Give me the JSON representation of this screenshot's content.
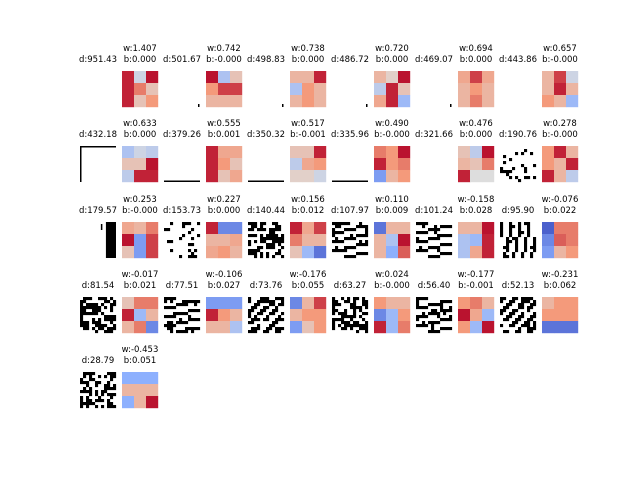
{
  "chart_data": {
    "type": "heatmap",
    "description_items_shown": 25,
    "colormap": "coolwarm",
    "pairs": [
      {
        "d": "d:951.43",
        "w": "w:1.407",
        "b": "b:0.000",
        "pattern": "blank",
        "kernel": [
          [
            0.9,
            -0.1,
            0.95
          ],
          [
            0.9,
            0.6,
            0.2
          ],
          [
            0.9,
            0.2,
            0.5
          ]
        ]
      },
      {
        "d": "d:501.67",
        "w": "w:0.742",
        "b": "b:-0.000",
        "pattern": "tick",
        "kernel": [
          [
            0.95,
            -0.3,
            0.2
          ],
          [
            0.5,
            0.8,
            0.8
          ],
          [
            0.3,
            0.3,
            0.3
          ]
        ]
      },
      {
        "d": "d:498.83",
        "w": "w:0.738",
        "b": "b:0.000",
        "pattern": "tick",
        "kernel": [
          [
            0.3,
            0.3,
            0.9
          ],
          [
            -0.3,
            0.5,
            0.3
          ],
          [
            0.3,
            0.5,
            0.3
          ]
        ]
      },
      {
        "d": "d:486.72",
        "w": "w:0.720",
        "b": "b:0.000",
        "pattern": "tick",
        "kernel": [
          [
            0.3,
            0.1,
            0.95
          ],
          [
            -0.2,
            0.9,
            0.2
          ],
          [
            0.4,
            0.9,
            -0.4
          ]
        ]
      },
      {
        "d": "d:469.07",
        "w": "w:0.694",
        "b": "b:0.000",
        "pattern": "tick",
        "kernel": [
          [
            0.4,
            0.8,
            0.4
          ],
          [
            0.3,
            0.5,
            0.3
          ],
          [
            0.3,
            0.6,
            0.3
          ]
        ]
      },
      {
        "d": "d:443.86",
        "w": "w:0.657",
        "b": "b:-0.000",
        "pattern": "blank",
        "kernel": [
          [
            0.3,
            0.8,
            -0.1
          ],
          [
            0.3,
            0.9,
            0.3
          ],
          [
            0.5,
            0.3,
            -0.4
          ]
        ]
      },
      {
        "d": "d:432.18",
        "w": "w:0.633",
        "b": "b:0.000",
        "pattern": "corner",
        "kernel": [
          [
            -0.3,
            -0.1,
            -0.2
          ],
          [
            0.2,
            0.2,
            0.95
          ],
          [
            -0.2,
            0.9,
            0.9
          ]
        ]
      },
      {
        "d": "d:379.26",
        "w": "w:0.555",
        "b": "b:0.001",
        "pattern": "bottomline",
        "kernel": [
          [
            0.9,
            0.4,
            0.4
          ],
          [
            0.9,
            0.5,
            0.2
          ],
          [
            0.9,
            0.2,
            0.4
          ]
        ]
      },
      {
        "d": "d:350.32",
        "w": "w:0.517",
        "b": "b:-0.001",
        "pattern": "bottomline",
        "kernel": [
          [
            0.2,
            0.2,
            0.9
          ],
          [
            -0.2,
            0.4,
            0.5
          ],
          [
            0.1,
            0.1,
            -0.1
          ]
        ]
      },
      {
        "d": "d:335.96",
        "w": "w:0.490",
        "b": "b:-0.000",
        "pattern": "bottomline",
        "kernel": [
          [
            0.6,
            0.5,
            0.95
          ],
          [
            0.9,
            0.5,
            0.6
          ],
          [
            -0.6,
            0.3,
            0.5
          ]
        ]
      },
      {
        "d": "d:321.66",
        "w": "w:0.476",
        "b": "b:0.000",
        "pattern": "blank",
        "kernel": [
          [
            0.2,
            -0.2,
            0.95
          ],
          [
            0.3,
            0.2,
            0.6
          ],
          [
            0.9,
            0.0,
            0.0
          ]
        ]
      },
      {
        "d": "d:190.76",
        "w": "w:0.278",
        "b": "b:-0.000",
        "pattern": "noise-sparse",
        "kernel": [
          [
            0.5,
            0.9,
            0.3
          ],
          [
            0.5,
            0.3,
            0.9
          ],
          [
            0.9,
            0.3,
            -0.2
          ]
        ]
      },
      {
        "d": "d:179.57",
        "w": "w:0.253",
        "b": "b:-0.000",
        "pattern": "rightbar",
        "kernel": [
          [
            0.4,
            0.3,
            0.6
          ],
          [
            0.95,
            -0.6,
            0.8
          ],
          [
            0.2,
            -0.6,
            0.8
          ]
        ]
      },
      {
        "d": "d:153.73",
        "w": "w:0.227",
        "b": "b:0.000",
        "pattern": "noise-sparse",
        "kernel": [
          [
            0.9,
            -0.7,
            -0.7
          ],
          [
            0.3,
            0.3,
            0.4
          ],
          [
            0.4,
            0.5,
            0.3
          ]
        ]
      },
      {
        "d": "d:140.44",
        "w": "w:0.156",
        "b": "b:0.012",
        "pattern": "noise-dense",
        "kernel": [
          [
            0.9,
            0.4,
            0.8
          ],
          [
            0.6,
            0.3,
            0.3
          ],
          [
            0.2,
            -0.4,
            -0.8
          ]
        ]
      },
      {
        "d": "d:107.97",
        "w": "w:0.110",
        "b": "b:0.009",
        "pattern": "stripes-h",
        "kernel": [
          [
            -0.8,
            0.3,
            0.3
          ],
          [
            0.3,
            -0.3,
            0.95
          ],
          [
            0.3,
            -0.5,
            0.7
          ]
        ]
      },
      {
        "d": "d:101.24",
        "w": "w:-0.158",
        "b": "b:0.028",
        "pattern": "stripes-h",
        "kernel": [
          [
            0.3,
            0.3,
            0.95
          ],
          [
            -0.3,
            -0.4,
            0.9
          ],
          [
            -0.3,
            0.4,
            0.9
          ]
        ]
      },
      {
        "d": "d:95.90",
        "w": "w:-0.076",
        "b": "b:0.022",
        "pattern": "stripes-v",
        "kernel": [
          [
            -0.9,
            0.6,
            0.6
          ],
          [
            -0.7,
            0.7,
            0.6
          ],
          [
            -0.6,
            0.3,
            0.5
          ]
        ]
      },
      {
        "d": "d:81.54",
        "w": "w:-0.017",
        "b": "b:0.021",
        "pattern": "noise-dense",
        "kernel": [
          [
            0.2,
            0.6,
            0.6
          ],
          [
            0.9,
            -0.4,
            0.3
          ],
          [
            0.3,
            0.6,
            -0.7
          ]
        ]
      },
      {
        "d": "d:77.51",
        "w": "w:-0.106",
        "b": "b:0.027",
        "pattern": "stripes-h",
        "kernel": [
          [
            -0.6,
            -0.6,
            -0.6
          ],
          [
            0.9,
            0.5,
            0.3
          ],
          [
            0.3,
            0.3,
            -0.3
          ]
        ]
      },
      {
        "d": "d:73.76",
        "w": "w:-0.176",
        "b": "b:0.055",
        "pattern": "stripes-d",
        "kernel": [
          [
            -0.7,
            0.3,
            0.8
          ],
          [
            0.3,
            0.5,
            0.5
          ],
          [
            -0.6,
            0.2,
            0.5
          ]
        ]
      },
      {
        "d": "d:63.27",
        "w": "w:0.024",
        "b": "b:-0.000",
        "pattern": "noise-dense",
        "kernel": [
          [
            0.5,
            0.3,
            0.3
          ],
          [
            -0.7,
            -0.4,
            0.5
          ],
          [
            0.9,
            -0.4,
            0.6
          ]
        ]
      },
      {
        "d": "d:56.40",
        "w": "w:-0.177",
        "b": "b:-0.001",
        "pattern": "stripes-h",
        "kernel": [
          [
            0.5,
            0.6,
            0.3
          ],
          [
            0.95,
            0.4,
            -0.4
          ],
          [
            0.5,
            -0.4,
            0.95
          ]
        ]
      },
      {
        "d": "d:52.13",
        "w": "w:-0.231",
        "b": "b:0.062",
        "pattern": "stripes-d",
        "kernel": [
          [
            0.3,
            0.5,
            0.5
          ],
          [
            0.5,
            0.5,
            0.5
          ],
          [
            -0.8,
            -0.8,
            -0.8
          ]
        ]
      },
      {
        "d": "d:28.79",
        "w": "w:-0.453",
        "b": "b:0.051",
        "pattern": "noise-dense",
        "kernel": [
          [
            -0.5,
            -0.5,
            -0.5
          ],
          [
            0.3,
            0.3,
            0.3
          ],
          [
            -0.5,
            0.3,
            0.95
          ]
        ]
      }
    ]
  }
}
